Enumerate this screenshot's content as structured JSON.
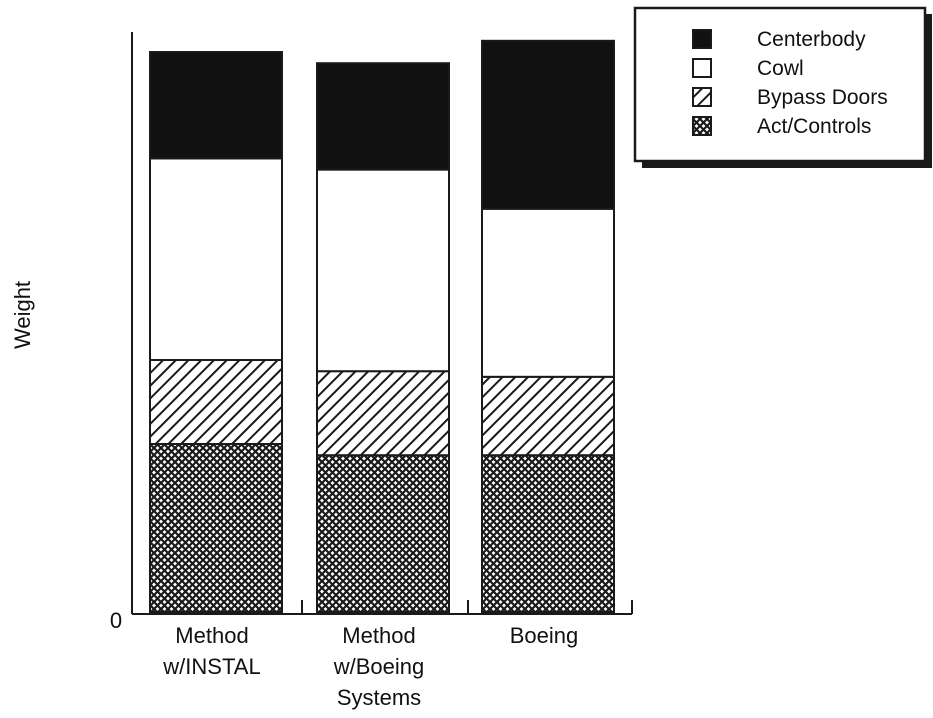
{
  "chart_data": {
    "type": "bar",
    "stacked": true,
    "title": "",
    "xlabel": "",
    "ylabel": "Weight",
    "y_tick_labels": [
      "0"
    ],
    "ylim": [
      0,
      100
    ],
    "categories": [
      "Method w/INSTAL",
      "Method w/Boeing Systems",
      "Boeing"
    ],
    "category_label_lines": [
      [
        "Method",
        "w/INSTAL"
      ],
      [
        "Method",
        "w/Boeing",
        "Systems"
      ],
      [
        "Boeing"
      ]
    ],
    "series": [
      {
        "name": "Act/Controls",
        "values": [
          30,
          28,
          28
        ],
        "color": "#1a1a1a",
        "pattern": "crosshatch"
      },
      {
        "name": "Bypass Doors",
        "values": [
          15,
          15,
          14
        ],
        "color": "#1a1a1a",
        "pattern": "diagonal"
      },
      {
        "name": "Cowl",
        "values": [
          36,
          36,
          30
        ],
        "color": "#ffffff",
        "pattern": "solid"
      },
      {
        "name": "Centerbody",
        "values": [
          19,
          19,
          30
        ],
        "color": "#111111",
        "pattern": "solid"
      }
    ],
    "legend": {
      "placement": "top-right",
      "entries": [
        "Centerbody",
        "Cowl",
        "Bypass Doors",
        "Act/Controls"
      ]
    },
    "grid": false
  }
}
